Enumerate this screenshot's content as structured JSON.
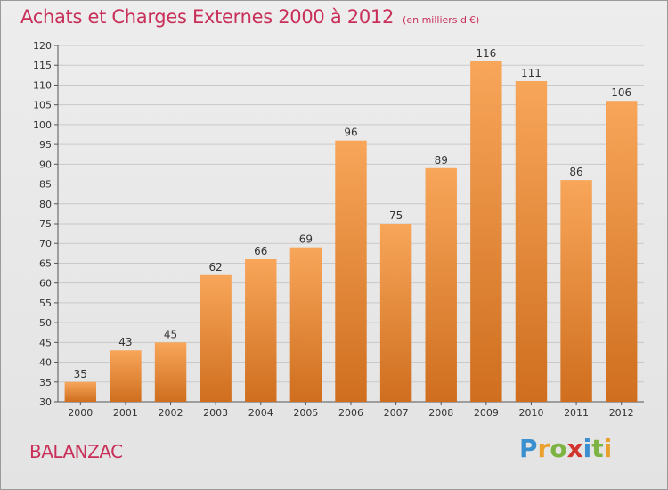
{
  "chart_data": {
    "type": "bar",
    "title": "Achats et Charges Externes 2000 à 2012",
    "subtitle": "(en milliers d'€)",
    "categories": [
      "2000",
      "2001",
      "2002",
      "2003",
      "2004",
      "2005",
      "2006",
      "2007",
      "2008",
      "2009",
      "2010",
      "2011",
      "2012"
    ],
    "values": [
      35,
      43,
      45,
      62,
      66,
      69,
      96,
      75,
      89,
      116,
      111,
      86,
      106
    ],
    "xlabel": "",
    "ylabel": "",
    "ylim": [
      30,
      120
    ],
    "yticks": [
      30,
      35,
      40,
      45,
      50,
      55,
      60,
      65,
      70,
      75,
      80,
      85,
      90,
      95,
      100,
      105,
      110,
      115,
      120
    ],
    "grid": true,
    "bar_color_top": "#f8a65a",
    "bar_color_bottom": "#cf6e1e"
  },
  "footer": {
    "place": "BALANZAC",
    "brand_letters": [
      {
        "ch": "P",
        "color": "#3a8fd0"
      },
      {
        "ch": "r",
        "color": "#e9a02d"
      },
      {
        "ch": "o",
        "color": "#7cb342"
      },
      {
        "ch": "x",
        "color": "#d3342e"
      },
      {
        "ch": "i",
        "color": "#3a8fd0"
      },
      {
        "ch": "t",
        "color": "#7cb342"
      },
      {
        "ch": "i",
        "color": "#e9a02d"
      }
    ]
  }
}
